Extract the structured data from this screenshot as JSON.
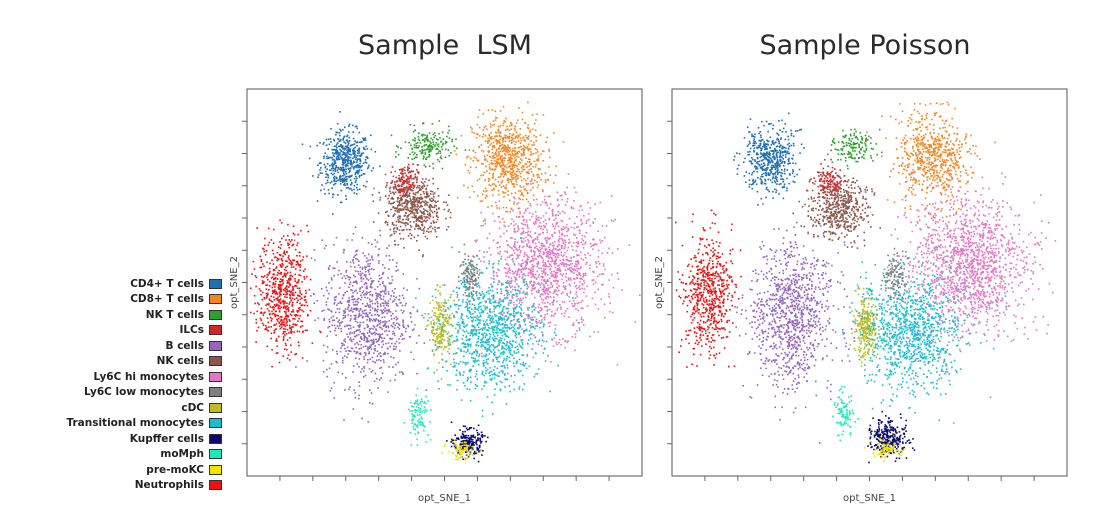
{
  "chart_data": [
    {
      "type": "scatter",
      "title": "Sample  LSM",
      "xlabel": "opt_SNE_1",
      "ylabel": "opt_SNE_2",
      "grid": false,
      "legend": "left",
      "clusters": [
        {
          "name": "CD4+ T cells",
          "cx": -48,
          "cy": 54,
          "sx": 7,
          "sy": 7,
          "n": 520
        },
        {
          "name": "CD8+ T cells",
          "cx": 30,
          "cy": 55,
          "sx": 10,
          "sy": 10,
          "n": 720
        },
        {
          "name": "NK T cells",
          "cx": -8,
          "cy": 60,
          "sx": 7,
          "sy": 4,
          "n": 180
        },
        {
          "name": "ILCs",
          "cx": -20,
          "cy": 46,
          "sx": 4,
          "sy": 4,
          "n": 140
        },
        {
          "name": "B cells",
          "cx": -38,
          "cy": -5,
          "sx": 12,
          "sy": 16,
          "n": 900
        },
        {
          "name": "NK cells",
          "cx": -15,
          "cy": 36,
          "sx": 8,
          "sy": 7,
          "n": 520
        },
        {
          "name": "Ly6C hi monocytes",
          "cx": 48,
          "cy": 14,
          "sx": 16,
          "sy": 15,
          "n": 1300
        },
        {
          "name": "Ly6C low monocytes",
          "cx": 12,
          "cy": 10,
          "sx": 3,
          "sy": 5,
          "n": 140
        },
        {
          "name": "cDC",
          "cx": -2,
          "cy": -10,
          "sx": 3,
          "sy": 7,
          "n": 220
        },
        {
          "name": "Transitional monocytes",
          "cx": 22,
          "cy": -12,
          "sx": 14,
          "sy": 13,
          "n": 1000
        },
        {
          "name": "Kupffer cells",
          "cx": 11,
          "cy": -55,
          "sx": 4,
          "sy": 3,
          "n": 230
        },
        {
          "name": "moMph",
          "cx": -13,
          "cy": -44,
          "sx": 3,
          "sy": 5,
          "n": 100
        },
        {
          "name": "pre-moKC",
          "cx": 8,
          "cy": -58,
          "sx": 4,
          "sy": 2,
          "n": 90
        },
        {
          "name": "Neutrophils",
          "cx": -78,
          "cy": 3,
          "sx": 7,
          "sy": 13,
          "n": 620
        }
      ],
      "xlim": [
        -95,
        95
      ],
      "ylim": [
        -68,
        82
      ]
    },
    {
      "type": "scatter",
      "title": "Sample Poisson",
      "xlabel": "opt_SNE_1",
      "ylabel": "opt_SNE_2",
      "grid": false,
      "clusters": [
        {
          "name": "CD4+ T cells",
          "cx": -48,
          "cy": 55,
          "sx": 7,
          "sy": 7,
          "n": 500
        },
        {
          "name": "CD8+ T cells",
          "cx": 30,
          "cy": 55,
          "sx": 10,
          "sy": 10,
          "n": 620
        },
        {
          "name": "NK T cells",
          "cx": -8,
          "cy": 60,
          "sx": 6,
          "sy": 4,
          "n": 140
        },
        {
          "name": "ILCs",
          "cx": -20,
          "cy": 46,
          "sx": 4,
          "sy": 4,
          "n": 120
        },
        {
          "name": "B cells",
          "cx": -38,
          "cy": -5,
          "sx": 12,
          "sy": 16,
          "n": 1000
        },
        {
          "name": "NK cells",
          "cx": -15,
          "cy": 36,
          "sx": 8,
          "sy": 7,
          "n": 500
        },
        {
          "name": "Ly6C hi monocytes",
          "cx": 48,
          "cy": 14,
          "sx": 16,
          "sy": 15,
          "n": 1400
        },
        {
          "name": "Ly6C low monocytes",
          "cx": 12,
          "cy": 10,
          "sx": 3,
          "sy": 5,
          "n": 120
        },
        {
          "name": "cDC",
          "cx": -2,
          "cy": -10,
          "sx": 3,
          "sy": 7,
          "n": 280
        },
        {
          "name": "Transitional monocytes",
          "cx": 20,
          "cy": -12,
          "sx": 14,
          "sy": 13,
          "n": 1000
        },
        {
          "name": "Kupffer cells",
          "cx": 9,
          "cy": -53,
          "sx": 5,
          "sy": 4,
          "n": 300
        },
        {
          "name": "moMph",
          "cx": -13,
          "cy": -44,
          "sx": 3,
          "sy": 5,
          "n": 90
        },
        {
          "name": "pre-moKC",
          "cx": 7,
          "cy": -57,
          "sx": 4,
          "sy": 2,
          "n": 80
        },
        {
          "name": "Neutrophils",
          "cx": -78,
          "cy": 3,
          "sx": 7,
          "sy": 13,
          "n": 600
        }
      ],
      "xlim": [
        -95,
        95
      ],
      "ylim": [
        -68,
        82
      ]
    }
  ],
  "legend": {
    "items": [
      {
        "label": "CD4+ T cells",
        "color": "#1f6fb5"
      },
      {
        "label": "CD8+ T cells",
        "color": "#f5861f"
      },
      {
        "label": "NK T cells",
        "color": "#2ca02c"
      },
      {
        "label": "ILCs",
        "color": "#d62728"
      },
      {
        "label": "B cells",
        "color": "#9467bd"
      },
      {
        "label": "NK cells",
        "color": "#8c564b"
      },
      {
        "label": "Ly6C hi monocytes",
        "color": "#e377c2"
      },
      {
        "label": "Ly6C low monocytes",
        "color": "#7f7f7f"
      },
      {
        "label": "cDC",
        "color": "#bcbd22"
      },
      {
        "label": "Transitional monocytes",
        "color": "#17becf"
      },
      {
        "label": "Kupffer cells",
        "color": "#0a0a6e"
      },
      {
        "label": "moMph",
        "color": "#1de9b6"
      },
      {
        "label": "pre-moKC",
        "color": "#f2e600"
      },
      {
        "label": "Neutrophils",
        "color": "#ee1111"
      }
    ]
  }
}
